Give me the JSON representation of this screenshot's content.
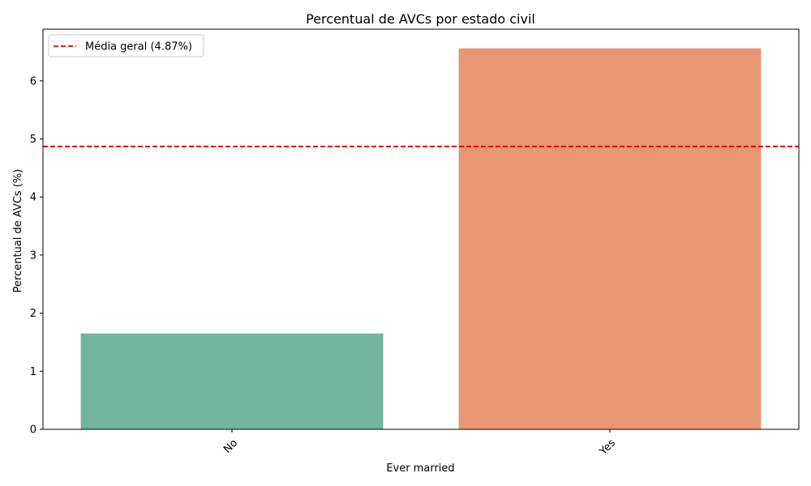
{
  "chart_data": {
    "type": "bar",
    "title": "Percentual de AVCs por estado civil",
    "xlabel": "Ever married",
    "ylabel": "Percentual de AVCs (%)",
    "categories": [
      "No",
      "Yes"
    ],
    "values": [
      1.65,
      6.56
    ],
    "bar_colors": [
      "#73b4a0",
      "#e89674"
    ],
    "ylim": [
      0,
      6.89
    ],
    "yticks": [
      0,
      1,
      2,
      3,
      4,
      5,
      6
    ],
    "grid": false,
    "reference_line": {
      "value": 4.87,
      "label": "Média geral (4.87%)",
      "color": "#e00000",
      "style": "dashed"
    },
    "legend": {
      "placement": "top-left"
    }
  }
}
